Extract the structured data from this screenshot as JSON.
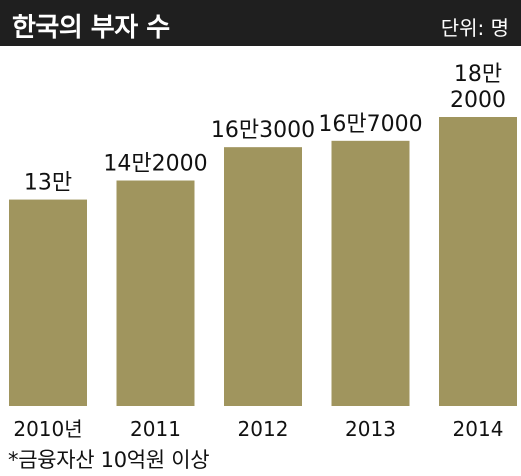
{
  "header": {
    "title": "한국의 부자 수",
    "unit": "단위: 명"
  },
  "footnote": "*금융자산 10억원 이상",
  "colors": {
    "bar": "#a0955e",
    "header_bg": "#1f1f1f",
    "text": "#111111"
  },
  "chart_data": {
    "type": "bar",
    "title": "한국의 부자 수",
    "categories": [
      "2010년",
      "2011",
      "2012",
      "2013",
      "2014"
    ],
    "values": [
      130000,
      142000,
      163000,
      167000,
      182000
    ],
    "value_labels": [
      [
        "13만"
      ],
      [
        "14만2000"
      ],
      [
        "16만3000"
      ],
      [
        "16만7000"
      ],
      [
        "18만",
        "2000"
      ]
    ],
    "ylim": [
      0,
      182000
    ],
    "grid": false,
    "legend": "none"
  }
}
